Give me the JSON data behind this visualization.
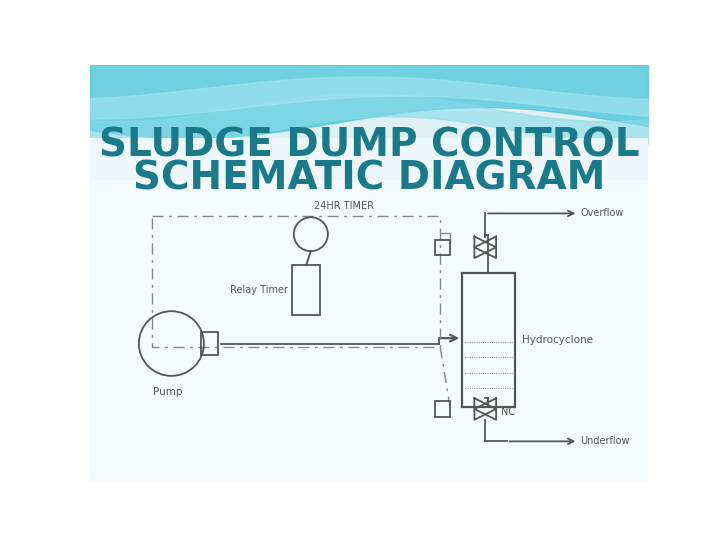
{
  "title_line1": "SLUDGE DUMP CONTROL",
  "title_line2": "SCHEMATIC DIAGRAM",
  "title_color": "#1a7a8a",
  "title_fontsize": 28,
  "bg_white": "#ffffff",
  "bg_light": "#f0f8fb",
  "wave_color1": "#7dd6e8",
  "wave_color2": "#a8e0ee",
  "wave_color3": "#c8eef7",
  "diagram_color": "#555555",
  "diagram_lw": 1.3,
  "dashed_color": "#888888",
  "labels": {
    "timer": "24HR TIMER",
    "relay": "Relay Timer",
    "pump": "Pump",
    "hydro": "Hydrocyclone",
    "overflow": "Overflow",
    "underflow": "Underflow",
    "nc": "NC"
  },
  "label_fontsize": 7,
  "label_color": "#555555"
}
